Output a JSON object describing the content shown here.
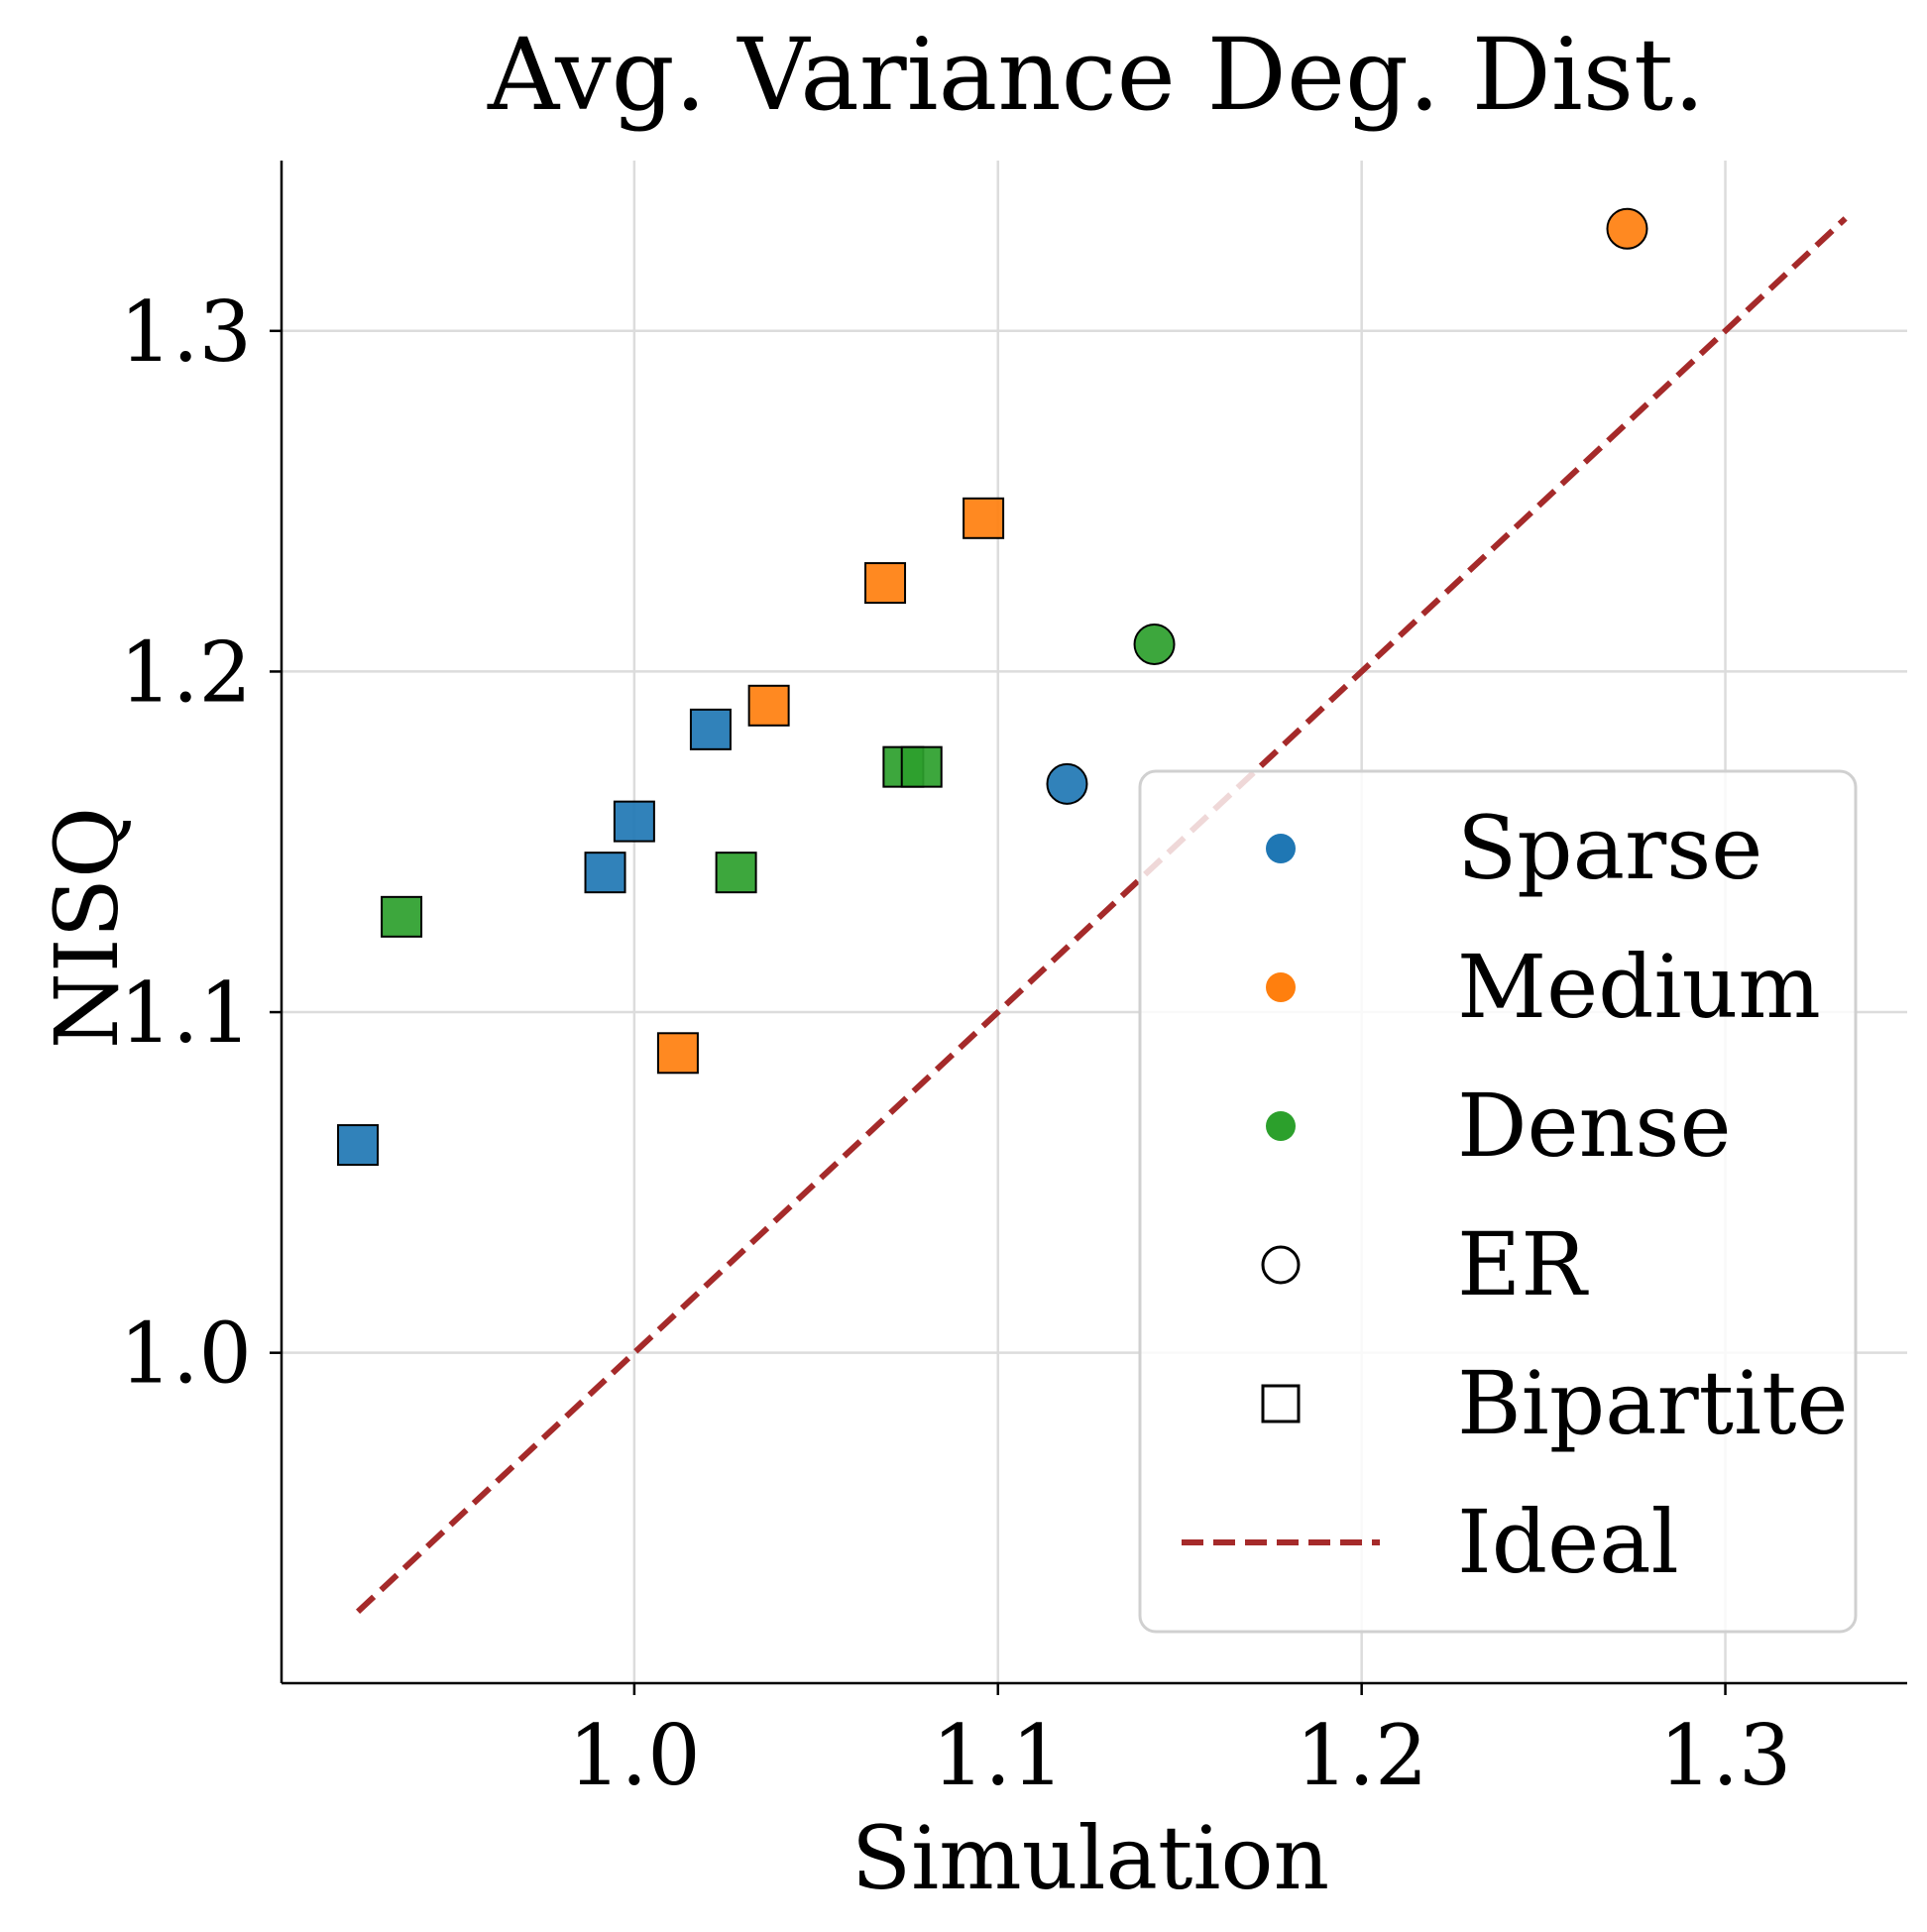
{
  "chart_data": {
    "type": "scatter",
    "title": "Avg. Variance Deg. Dist.",
    "xlabel": "Simulation",
    "ylabel": "NISQ",
    "xlim": [
      0.903,
      1.35
    ],
    "ylim": [
      0.903,
      1.35
    ],
    "xticks": [
      1.0,
      1.1,
      1.2,
      1.3
    ],
    "yticks": [
      1.0,
      1.1,
      1.2,
      1.3
    ],
    "xtick_labels": [
      "1.0",
      "1.1",
      "1.2",
      "1.3"
    ],
    "ytick_labels": [
      "1.0",
      "1.1",
      "1.2",
      "1.3"
    ],
    "grid": true,
    "legend_position": "lower-right",
    "colors": {
      "Sparse": "#1f77b4",
      "Medium": "#ff7f0e",
      "Dense": "#2ca02c",
      "Ideal": "#a52a2a"
    },
    "series": [
      {
        "name": "Sparse",
        "marker": "square",
        "x": [
          0.924,
          0.992,
          1.0,
          1.021
        ],
        "y": [
          1.061,
          1.141,
          1.156,
          1.183
        ]
      },
      {
        "name": "Sparse",
        "marker": "circle",
        "x": [
          1.119
        ],
        "y": [
          1.167
        ]
      },
      {
        "name": "Medium",
        "marker": "square",
        "x": [
          1.012,
          1.037,
          1.069,
          1.096
        ],
        "y": [
          1.088,
          1.19,
          1.226,
          1.245
        ]
      },
      {
        "name": "Medium",
        "marker": "circle",
        "x": [
          1.273
        ],
        "y": [
          1.33
        ]
      },
      {
        "name": "Dense",
        "marker": "square",
        "x": [
          0.936,
          1.028,
          1.074,
          1.079
        ],
        "y": [
          1.128,
          1.141,
          1.172,
          1.172
        ]
      },
      {
        "name": "Dense",
        "marker": "circle",
        "x": [
          1.143
        ],
        "y": [
          1.208
        ]
      }
    ],
    "ideal_line": {
      "name": "Ideal",
      "x": [
        0.924,
        1.333
      ],
      "y": [
        0.924,
        1.333
      ]
    },
    "legend": [
      {
        "label": "Sparse",
        "symbol": "dot",
        "color": "#1f77b4"
      },
      {
        "label": "Medium",
        "symbol": "dot",
        "color": "#ff7f0e"
      },
      {
        "label": "Dense",
        "symbol": "dot",
        "color": "#2ca02c"
      },
      {
        "label": "ER",
        "symbol": "circle"
      },
      {
        "label": "Bipartite",
        "symbol": "square"
      },
      {
        "label": "Ideal",
        "symbol": "dashed-line",
        "color": "#a52a2a"
      }
    ]
  }
}
